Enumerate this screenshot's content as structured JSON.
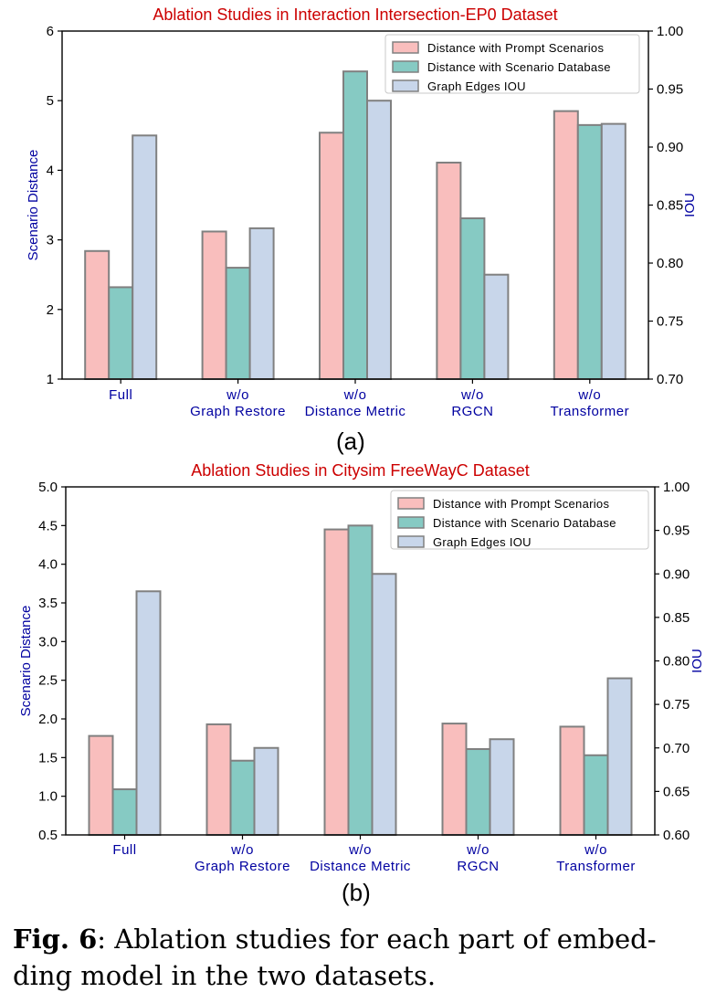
{
  "chart_data": [
    {
      "type": "bar",
      "title": "Ablation Studies in Interaction Intersection-EP0 Dataset",
      "panel_label": "(a)",
      "ylabel": "Scenario Distance",
      "y2label": "IOU",
      "ylim": [
        1,
        6
      ],
      "y2lim": [
        0.7,
        1.0
      ],
      "yticks": [
        "1",
        "2",
        "3",
        "4",
        "5",
        "6"
      ],
      "y2ticks": [
        "0.70",
        "0.75",
        "0.80",
        "0.85",
        "0.90",
        "0.95",
        "1.00"
      ],
      "categories": [
        [
          "Full"
        ],
        [
          "w/o",
          "Graph Restore"
        ],
        [
          "w/o",
          "Distance Metric"
        ],
        [
          "w/o",
          "RGCN"
        ],
        [
          "w/o",
          "Transformer"
        ]
      ],
      "series": [
        {
          "name": "Distance with Prompt Scenarios",
          "axis": "left",
          "color": "#f9bebd",
          "values": [
            2.84,
            3.12,
            4.54,
            4.11,
            4.85
          ]
        },
        {
          "name": "Distance with Scenario Database",
          "axis": "left",
          "color": "#86cac3",
          "values": [
            2.32,
            2.6,
            5.42,
            3.31,
            4.65
          ]
        },
        {
          "name": "Graph Edges IOU",
          "axis": "right",
          "color": "#c8d6ea",
          "values": [
            0.91,
            0.83,
            0.94,
            0.79,
            0.92
          ]
        }
      ],
      "legend_position": "top-right",
      "grid": false
    },
    {
      "type": "bar",
      "title": "Ablation Studies in Citysim FreeWayC Dataset",
      "panel_label": "(b)",
      "ylabel": "Scenario Distance",
      "y2label": "IOU",
      "ylim": [
        0.5,
        5.0
      ],
      "y2lim": [
        0.6,
        1.0
      ],
      "yticks": [
        "0.5",
        "1.0",
        "1.5",
        "2.0",
        "2.5",
        "3.0",
        "3.5",
        "4.0",
        "4.5",
        "5.0"
      ],
      "y2ticks": [
        "0.60",
        "0.65",
        "0.70",
        "0.75",
        "0.80",
        "0.85",
        "0.90",
        "0.95",
        "1.00"
      ],
      "categories": [
        [
          "Full"
        ],
        [
          "w/o",
          "Graph Restore"
        ],
        [
          "w/o",
          "Distance Metric"
        ],
        [
          "w/o",
          "RGCN"
        ],
        [
          "w/o",
          "Transformer"
        ]
      ],
      "series": [
        {
          "name": "Distance with Prompt Scenarios",
          "axis": "left",
          "color": "#f9bebd",
          "values": [
            1.78,
            1.93,
            4.45,
            1.94,
            1.9
          ]
        },
        {
          "name": "Distance with Scenario Database",
          "axis": "left",
          "color": "#86cac3",
          "values": [
            1.09,
            1.46,
            4.5,
            1.61,
            1.53
          ]
        },
        {
          "name": "Graph Edges IOU",
          "axis": "right",
          "color": "#c8d6ea",
          "values": [
            0.88,
            0.7,
            0.9,
            0.71,
            0.78
          ]
        }
      ],
      "legend_position": "top-right",
      "grid": false
    }
  ],
  "caption": {
    "label": "Fig. 6",
    "text": ": Ablation studies for each part of embed-ding model in the two datasets."
  },
  "colors": {
    "title": "#cc0000",
    "axis_label": "#0000a0",
    "bar_edge": "#808080"
  }
}
